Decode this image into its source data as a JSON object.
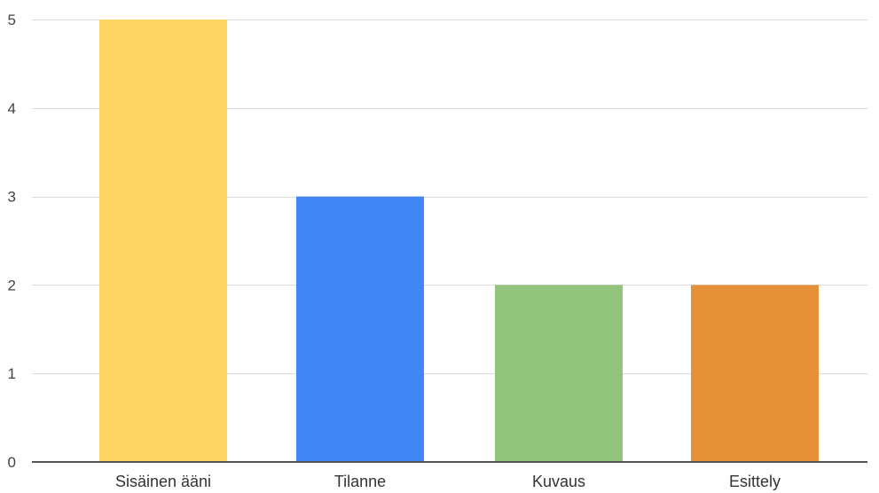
{
  "chart_data": {
    "type": "bar",
    "title": "",
    "xlabel": "",
    "ylabel": "",
    "categories": [
      "Sisäinen ääni",
      "Tilanne",
      "Kuvaus",
      "Esittely"
    ],
    "values": [
      5,
      3,
      2,
      2
    ],
    "colors": [
      "#FDD663",
      "#4285F4",
      "#93C47D",
      "#E69138"
    ],
    "ylim": [
      0,
      5
    ],
    "yticks": [
      "0",
      "1",
      "2",
      "3",
      "4",
      "5"
    ],
    "grid": true,
    "legend": "none"
  }
}
